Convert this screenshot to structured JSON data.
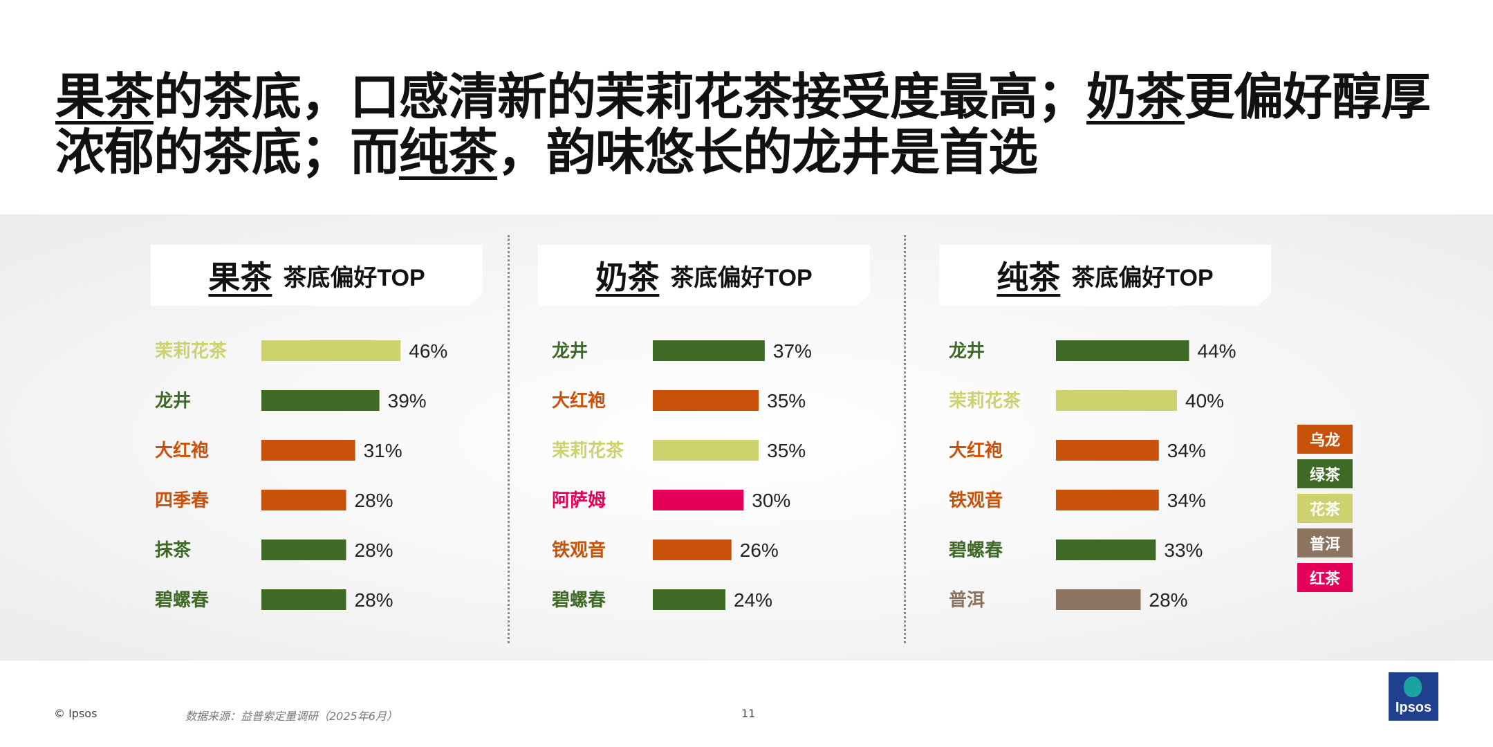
{
  "title": {
    "part1": "果茶",
    "part2": "的茶底，口感清新的茉莉花茶接受度最高；",
    "part3": "奶茶",
    "part4": "更偏好醇厚浓郁的茶底；而",
    "part5": "纯茶",
    "part6": "，韵味悠长的龙井是首选"
  },
  "colors": {
    "乌龙": "#c8520a",
    "绿茶": "#3f6a26",
    "花茶": "#cdd26e",
    "普洱": "#8c7460",
    "红茶": "#e5005a"
  },
  "legend": [
    {
      "label": "乌龙",
      "color": "#c8520a"
    },
    {
      "label": "绿茶",
      "color": "#3f6a26"
    },
    {
      "label": "花茶",
      "color": "#cdd26e"
    },
    {
      "label": "普洱",
      "color": "#8c7460"
    },
    {
      "label": "红茶",
      "color": "#e5005a"
    }
  ],
  "chart_data": [
    {
      "type": "bar",
      "header": {
        "category": "果茶",
        "subtitle": "茶底偏好TOP"
      },
      "categories": [
        "茉莉花茶",
        "龙井",
        "大红袍",
        "四季春",
        "抹茶",
        "碧螺春"
      ],
      "values": [
        46,
        39,
        31,
        28,
        28,
        28
      ],
      "value_labels": [
        "46%",
        "39%",
        "31%",
        "28%",
        "28%",
        "28%"
      ],
      "groups": [
        "花茶",
        "绿茶",
        "乌龙",
        "乌龙",
        "绿茶",
        "绿茶"
      ],
      "unit": "%"
    },
    {
      "type": "bar",
      "header": {
        "category": "奶茶",
        "subtitle": "茶底偏好TOP"
      },
      "categories": [
        "龙井",
        "大红袍",
        "茉莉花茶",
        "阿萨姆",
        "铁观音",
        "碧螺春"
      ],
      "values": [
        37,
        35,
        35,
        30,
        26,
        24
      ],
      "value_labels": [
        "37%",
        "35%",
        "35%",
        "30%",
        "26%",
        "24%"
      ],
      "groups": [
        "绿茶",
        "乌龙",
        "花茶",
        "红茶",
        "乌龙",
        "绿茶"
      ],
      "unit": "%"
    },
    {
      "type": "bar",
      "header": {
        "category": "纯茶",
        "subtitle": "茶底偏好TOP"
      },
      "categories": [
        "龙井",
        "茉莉花茶",
        "大红袍",
        "铁观音",
        "碧螺春",
        "普洱"
      ],
      "values": [
        44,
        40,
        34,
        34,
        33,
        28
      ],
      "value_labels": [
        "44%",
        "40%",
        "34%",
        "34%",
        "33%",
        "28%"
      ],
      "groups": [
        "绿茶",
        "花茶",
        "乌龙",
        "乌龙",
        "绿茶",
        "普洱"
      ],
      "unit": "%"
    }
  ],
  "footer": {
    "copyright": "© Ipsos",
    "source": "数据来源：益普索定量调研（2025年6月）",
    "page_number": "11",
    "logo_text": "Ipsos"
  }
}
